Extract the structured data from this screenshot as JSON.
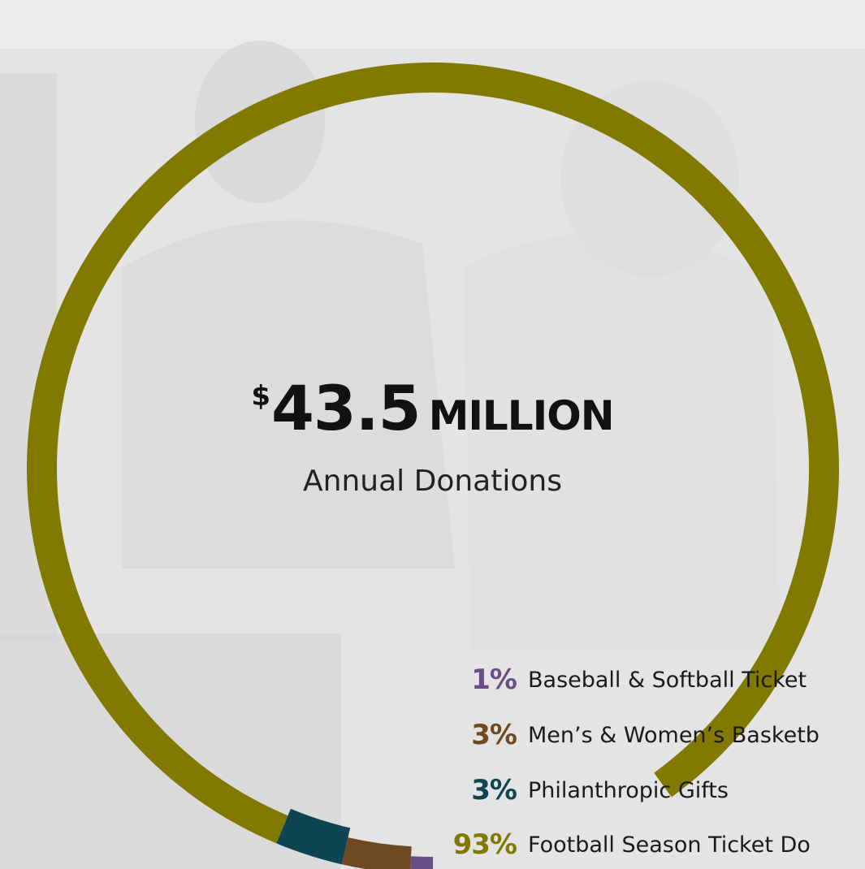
{
  "headline": {
    "currency": "$",
    "amount": "43.5",
    "unit": "MILLION"
  },
  "subtitle": "Annual Donations",
  "chart_data": {
    "type": "pie",
    "title": "$43.5 MILLION",
    "subtitle": "Annual Donations",
    "slices": [
      {
        "pct_label": "1%",
        "label": "Baseball & Softball Ticket",
        "value": 1,
        "color": "#6a4f86"
      },
      {
        "pct_label": "3%",
        "label": "Men’s & Women’s Basketb",
        "value": 3,
        "color": "#6d4a1f"
      },
      {
        "pct_label": "3%",
        "label": "Philanthropic Gifts",
        "value": 3,
        "color": "#0f4452"
      },
      {
        "pct_label": "93%",
        "label": "Football Season Ticket Do",
        "value": 93,
        "color": "#827a00"
      }
    ]
  }
}
